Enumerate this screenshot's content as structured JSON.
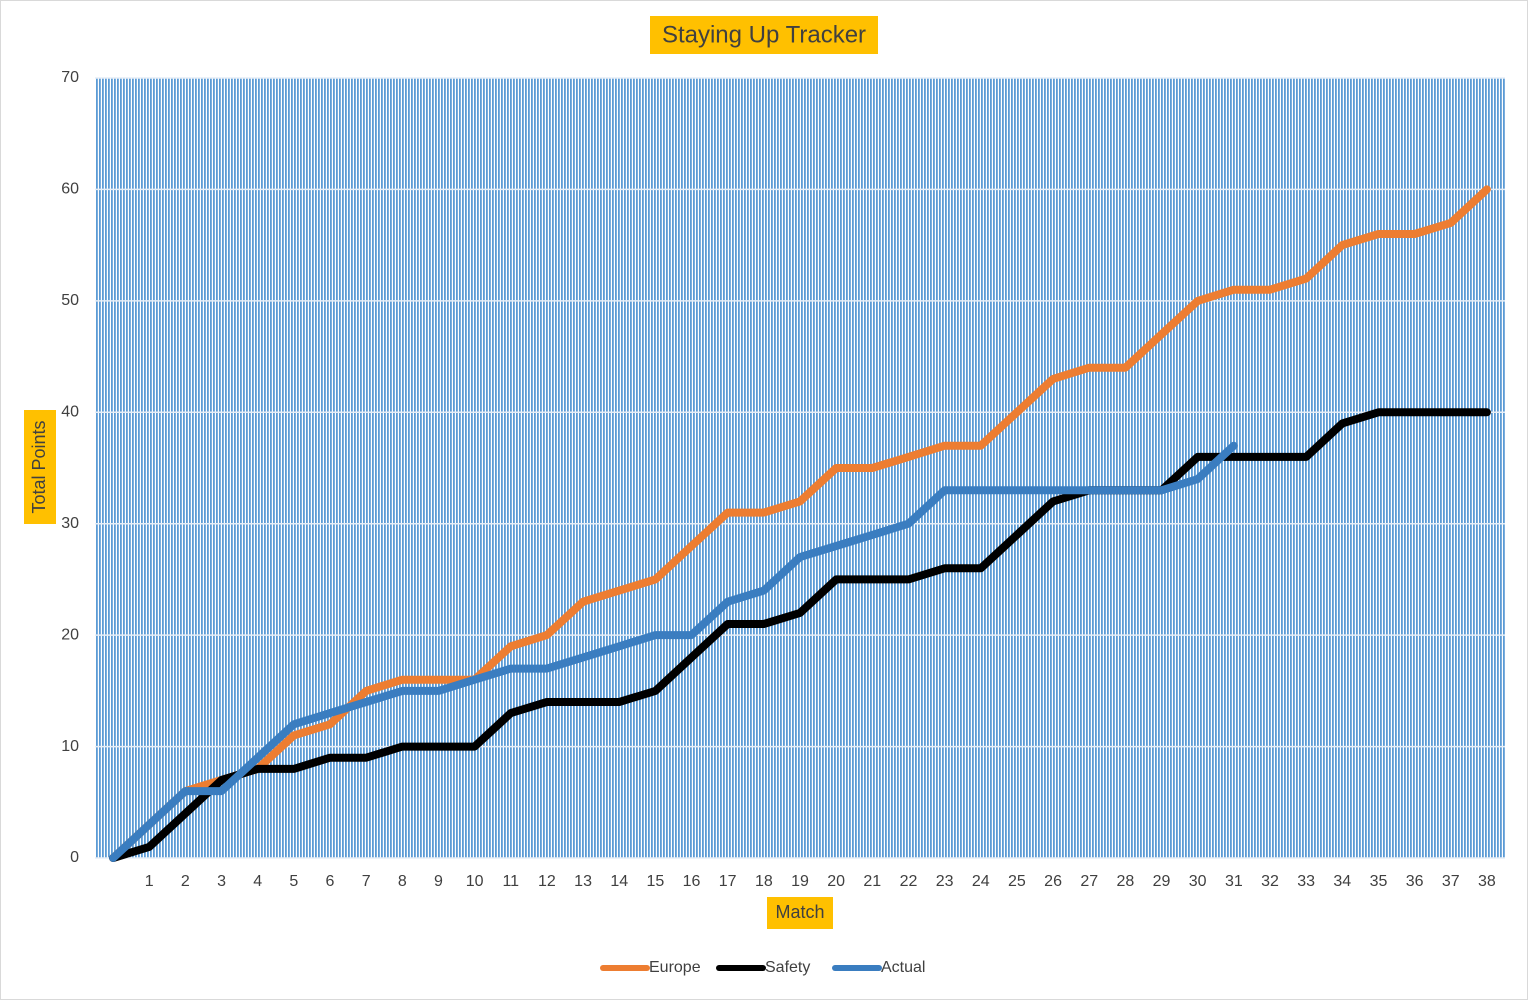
{
  "chart_data": {
    "type": "line",
    "title": "Staying Up Tracker",
    "x_label": "Match",
    "y_label": "Total Points",
    "categories": [
      null,
      "1",
      "2",
      "3",
      "4",
      "5",
      "6",
      "7",
      "8",
      "9",
      "10",
      "11",
      "12",
      "13",
      "14",
      "15",
      "16",
      "17",
      "18",
      "19",
      "20",
      "21",
      "22",
      "23",
      "24",
      "25",
      "26",
      "27",
      "28",
      "29",
      "30",
      "31",
      "32",
      "33",
      "34",
      "35",
      "36",
      "37",
      "38"
    ],
    "series": [
      {
        "name": "Europe",
        "color": "#ed7d31",
        "values": [
          0,
          3,
          6,
          7,
          8,
          11,
          12,
          15,
          16,
          16,
          16,
          19,
          20,
          23,
          24,
          25,
          28,
          31,
          31,
          32,
          35,
          35,
          36,
          37,
          37,
          40,
          43,
          44,
          44,
          47,
          50,
          51,
          51,
          52,
          55,
          56,
          56,
          57,
          60
        ]
      },
      {
        "name": "Safety",
        "color": "#000000",
        "values": [
          0,
          1,
          4,
          7,
          8,
          8,
          9,
          9,
          10,
          10,
          10,
          13,
          14,
          14,
          14,
          15,
          18,
          21,
          21,
          22,
          25,
          25,
          25,
          26,
          26,
          29,
          32,
          33,
          33,
          33,
          36,
          36,
          36,
          36,
          39,
          40,
          40,
          40,
          40
        ]
      },
      {
        "name": "Actual",
        "color": "#3a7dc0",
        "values": [
          0,
          3,
          6,
          6,
          9,
          12,
          13,
          14,
          15,
          15,
          16,
          17,
          17,
          18,
          19,
          20,
          20,
          23,
          24,
          27,
          28,
          29,
          30,
          33,
          33,
          33,
          33,
          33,
          33,
          33,
          34,
          37,
          null,
          null,
          null,
          null,
          null,
          null,
          null
        ]
      }
    ],
    "ylim": [
      0,
      70
    ],
    "yticks": [
      0,
      10,
      20,
      30,
      40,
      50,
      60,
      70
    ],
    "grid": true,
    "legend": "bottom"
  }
}
